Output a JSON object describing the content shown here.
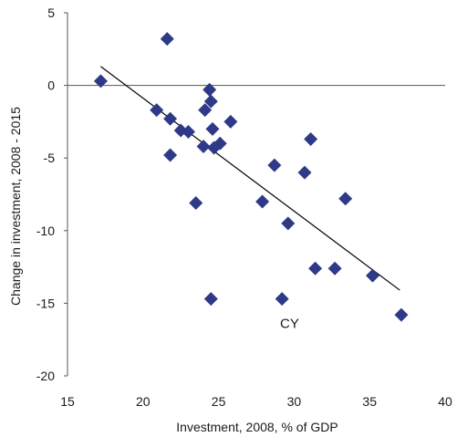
{
  "chart_data": {
    "type": "scatter",
    "xlabel": "Investment, 2008, % of GDP",
    "ylabel": "Change in investment, 2008 - 2015",
    "xlim": [
      15,
      40
    ],
    "ylim": [
      -20,
      5
    ],
    "xticks": [
      15,
      20,
      25,
      30,
      35,
      40
    ],
    "yticks": [
      5,
      0,
      -5,
      -10,
      -15,
      -20
    ],
    "xtick_labels": [
      "15",
      "20",
      "25",
      "30",
      "35",
      "40"
    ],
    "ytick_labels": [
      "5",
      "0",
      "-5",
      "-10",
      "-15",
      "-20"
    ],
    "grid": false,
    "marker": "diamond",
    "marker_color": "#2e3a87",
    "points": [
      {
        "x": 17.2,
        "y": 0.3
      },
      {
        "x": 20.9,
        "y": -1.7
      },
      {
        "x": 21.6,
        "y": 3.2
      },
      {
        "x": 21.8,
        "y": -2.3
      },
      {
        "x": 21.8,
        "y": -4.8
      },
      {
        "x": 22.5,
        "y": -3.1
      },
      {
        "x": 23.0,
        "y": -3.2
      },
      {
        "x": 23.5,
        "y": -8.1
      },
      {
        "x": 24.0,
        "y": -4.2
      },
      {
        "x": 24.1,
        "y": -1.7
      },
      {
        "x": 24.4,
        "y": -0.3
      },
      {
        "x": 24.5,
        "y": -1.1
      },
      {
        "x": 24.6,
        "y": -3.0
      },
      {
        "x": 24.7,
        "y": -4.3
      },
      {
        "x": 25.1,
        "y": -4.0
      },
      {
        "x": 25.8,
        "y": -2.5
      },
      {
        "x": 24.5,
        "y": -14.7
      },
      {
        "x": 27.9,
        "y": -8.0
      },
      {
        "x": 28.7,
        "y": -5.5
      },
      {
        "x": 29.2,
        "y": -14.7
      },
      {
        "x": 29.6,
        "y": -9.5
      },
      {
        "x": 30.7,
        "y": -6.0
      },
      {
        "x": 31.1,
        "y": -3.7
      },
      {
        "x": 31.4,
        "y": -12.6
      },
      {
        "x": 32.7,
        "y": -12.6
      },
      {
        "x": 33.4,
        "y": -7.8
      },
      {
        "x": 35.2,
        "y": -13.1
      },
      {
        "x": 37.1,
        "y": -15.8
      }
    ],
    "trendline": {
      "x": [
        17.2,
        37.0
      ],
      "y": [
        1.3,
        -14.1
      ]
    },
    "annotations": [
      {
        "text": "CY",
        "x": 29.7,
        "y": -16.4
      }
    ]
  }
}
